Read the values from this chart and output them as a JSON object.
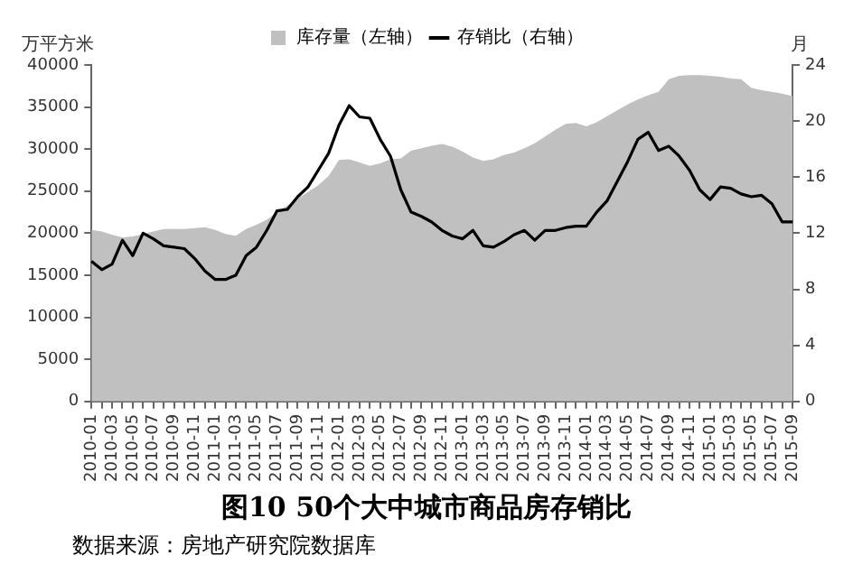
{
  "chart_data": {
    "type": "line",
    "title": "图10 50个大中城市商品房存销比",
    "ylabel": "万平方米",
    "y2label": "月",
    "annotations": [
      "数据来源：房地产研究院数据库"
    ],
    "categories": [
      "2010-01",
      null,
      "2010-03",
      null,
      "2010-05",
      null,
      "2010-07",
      null,
      "2010-09",
      null,
      "2010-11",
      null,
      "2011-01",
      null,
      "2011-03",
      null,
      "2011-05",
      null,
      "2011-07",
      null,
      "2011-09",
      null,
      "2011-11",
      null,
      "2012-01",
      null,
      "2012-03",
      null,
      "2012-05",
      null,
      "2012-07",
      null,
      "2012-09",
      null,
      "2012-11",
      null,
      "2013-01",
      null,
      "2013-03",
      null,
      "2013-05",
      null,
      "2013-07",
      null,
      "2013-09",
      null,
      "2013-11",
      null,
      "2014-01",
      null,
      "2014-03",
      null,
      "2014-05",
      null,
      "2014-07",
      null,
      "2014-09",
      null,
      "2014-11",
      null,
      "2015-01",
      null,
      "2015-03",
      null,
      "2015-05",
      null,
      "2015-07",
      null,
      "2015-09"
    ],
    "series": [
      {
        "name": "库存量（左轴）",
        "type": "area",
        "color": "#c0c0c0",
        "values": [
          20400,
          20200,
          19800,
          19500,
          19600,
          19900,
          20200,
          20500,
          20500,
          20500,
          20600,
          20700,
          20400,
          19900,
          19700,
          20500,
          21000,
          21600,
          22500,
          23300,
          24100,
          24900,
          25700,
          26800,
          28700,
          28800,
          28400,
          28000,
          28300,
          28800,
          28900,
          29800,
          30100,
          30400,
          30600,
          30300,
          29700,
          29000,
          28600,
          28800,
          29300,
          29600,
          30100,
          30700,
          31500,
          32300,
          33000,
          33100,
          32700,
          33200,
          33900,
          34600,
          35300,
          35900,
          36400,
          36800,
          38300,
          38700,
          38800,
          38800,
          38700,
          38600,
          38400,
          38300,
          37300,
          37000,
          36800,
          36600,
          36300
        ]
      },
      {
        "name": "存销比（右轴）",
        "type": "line",
        "axis": "y2",
        "color": "#000000",
        "values": [
          10.0,
          9.4,
          9.8,
          11.5,
          10.4,
          12.0,
          11.6,
          11.1,
          11.0,
          10.9,
          10.2,
          9.3,
          8.7,
          8.7,
          9.0,
          10.4,
          11.0,
          12.2,
          13.6,
          13.7,
          14.6,
          15.3,
          16.5,
          17.7,
          19.7,
          21.1,
          20.3,
          20.2,
          18.7,
          17.5,
          15.1,
          13.5,
          13.2,
          12.8,
          12.2,
          11.8,
          11.6,
          12.2,
          11.1,
          11.0,
          11.4,
          11.9,
          12.2,
          11.5,
          12.2,
          12.2,
          12.4,
          12.5,
          12.5,
          13.5,
          14.3,
          15.7,
          17.1,
          18.7,
          19.2,
          17.9,
          18.2,
          17.5,
          16.5,
          15.1,
          14.4,
          15.3,
          15.2,
          14.8,
          14.6,
          14.7,
          14.1,
          12.8,
          12.8
        ]
      }
    ],
    "ylim": [
      0,
      40000
    ],
    "yticks": [
      0,
      5000,
      10000,
      15000,
      20000,
      25000,
      30000,
      35000,
      40000
    ],
    "y2lim": [
      0,
      24
    ],
    "y2ticks": [
      0,
      4,
      8,
      12,
      16,
      20,
      24
    ],
    "grid": false,
    "legend": "top",
    "marker": "none",
    "line_style": "solid"
  }
}
